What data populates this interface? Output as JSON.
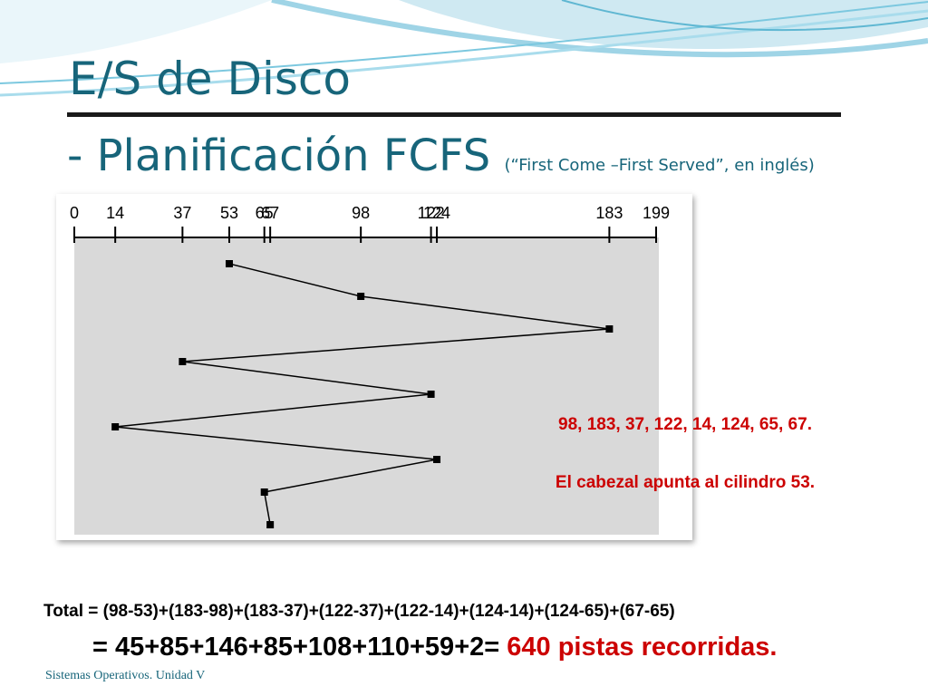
{
  "slide": {
    "title_line1": "E/S de Disco",
    "title_line2": "- Planificación FCFS",
    "title_note": "(“First Come –First Served”, en inglés)",
    "footer": "Sistemas Operativos. Unidad V"
  },
  "chart_data": {
    "type": "line",
    "title": "",
    "x_ticks": [
      0,
      14,
      37,
      53,
      65,
      67,
      98,
      122,
      124,
      183,
      199
    ],
    "xlim": [
      0,
      199
    ],
    "head_path": [
      53,
      98,
      183,
      37,
      122,
      14,
      124,
      65,
      67
    ]
  },
  "annotations": {
    "sequence": "98, 183, 37, 122, 14, 124, 65, 67.",
    "head_start": "El cabezal apunta al cilindro 53."
  },
  "calc": {
    "total_label": "Total",
    "total_expr": " = (98-53)+(183-98)+(183-37)+(122-37)+(122-14)+(124-14)+(124-65)+(67-65)",
    "sum_expr": "= 45+85+146+85+108+110+59+2=",
    "result": "640 pistas recorridas."
  },
  "colors": {
    "title": "#17657a",
    "accent": "#cc0000",
    "plot_bg": "#d9d9d9"
  }
}
